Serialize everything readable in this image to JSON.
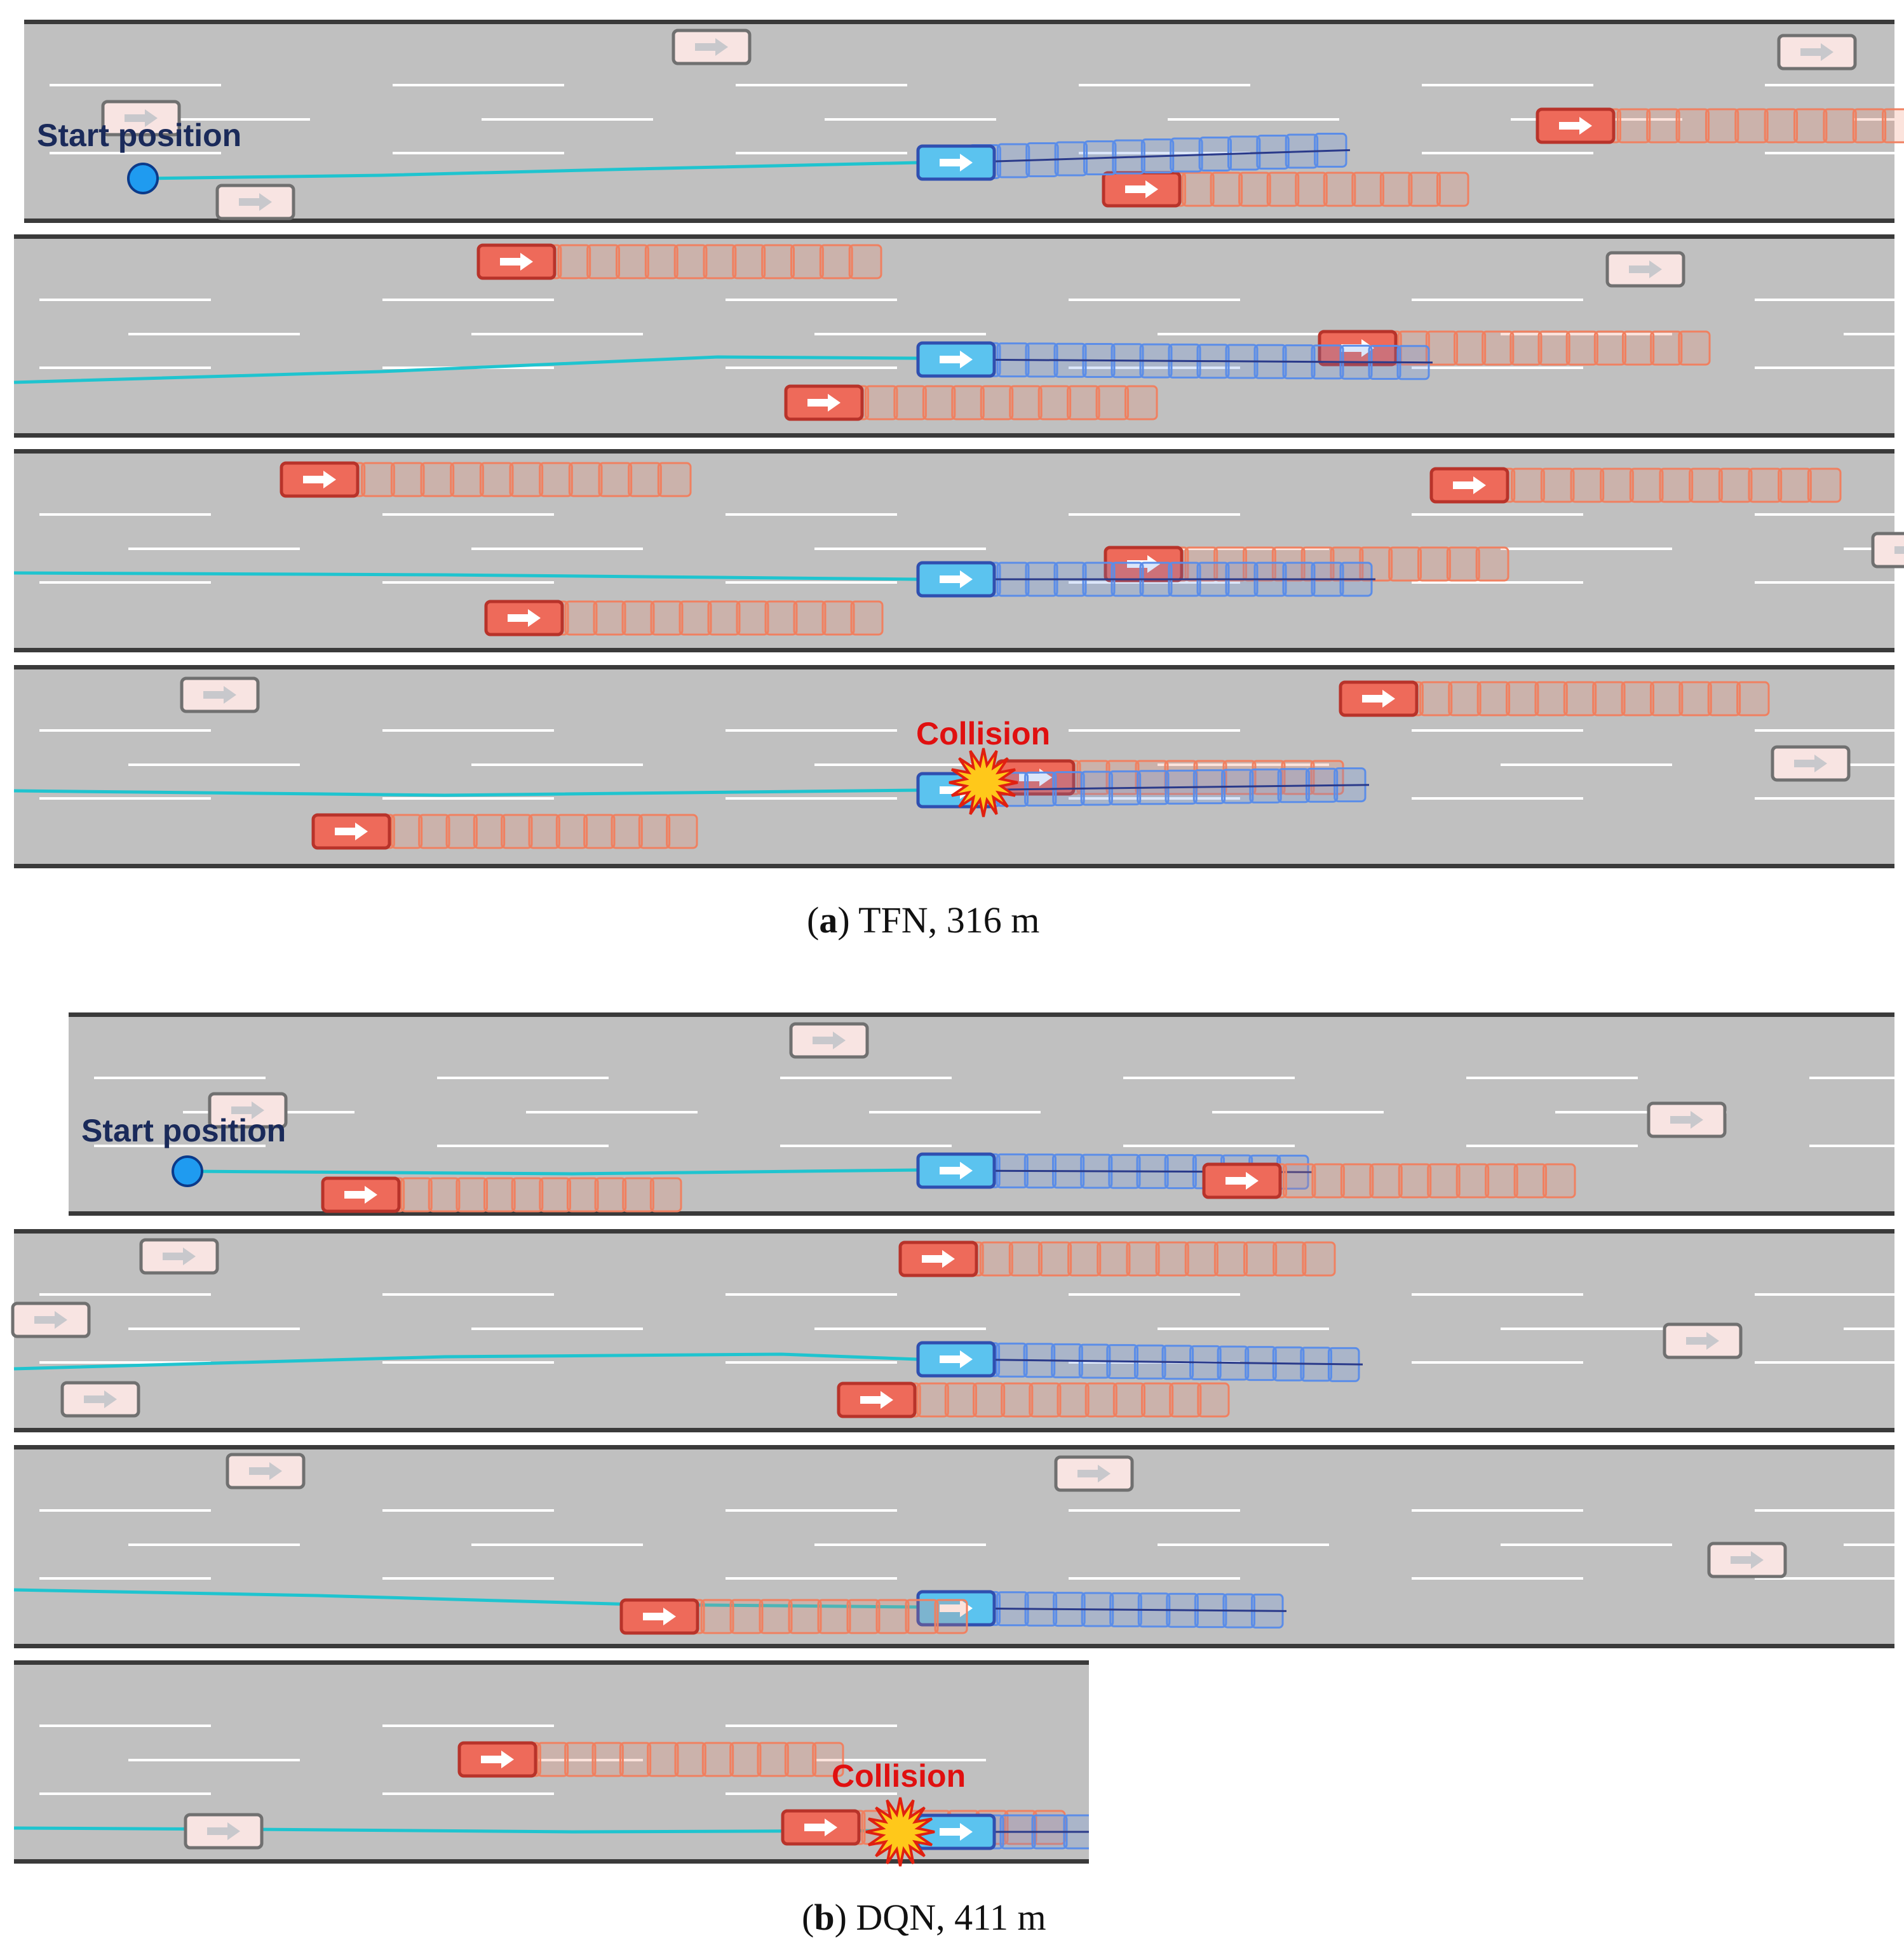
{
  "figure": {
    "panels": [
      {
        "id": "a",
        "method": "TFN",
        "distance": "316 m",
        "start_label": "Start position",
        "collision_label": "Collision"
      },
      {
        "id": "b",
        "method": "DQN",
        "distance": "411 m",
        "start_label": "Start position",
        "collision_label": "Collision"
      }
    ]
  },
  "colors": {
    "road": "#c0c0c0",
    "road_edge": "#3a3a3a",
    "lane_mark": "#ffffff",
    "trajectory": "#1fc4cf",
    "ego_fill": "#5bc3ef",
    "ego_border": "#2f4fb0",
    "ego_trail": "#5b8de8",
    "ego_center_line": "#2a3a8a",
    "attacker_fill": "#ee6a5a",
    "attacker_border": "#b8332a",
    "attacker_trail": "#f08060",
    "bg_vehicle_fill": "#f8e4e2",
    "bg_vehicle_border": "#707070",
    "start_dot": "#1f9bf0",
    "start_label": "#1a2a5a",
    "collision_label": "#e01010",
    "explosion_fill": "#ffc81a",
    "explosion_border": "#e02010"
  },
  "icons": {
    "start_marker": "start-position-marker-icon",
    "collision": "explosion-icon",
    "vehicle_arrow": "right-arrow-icon"
  }
}
